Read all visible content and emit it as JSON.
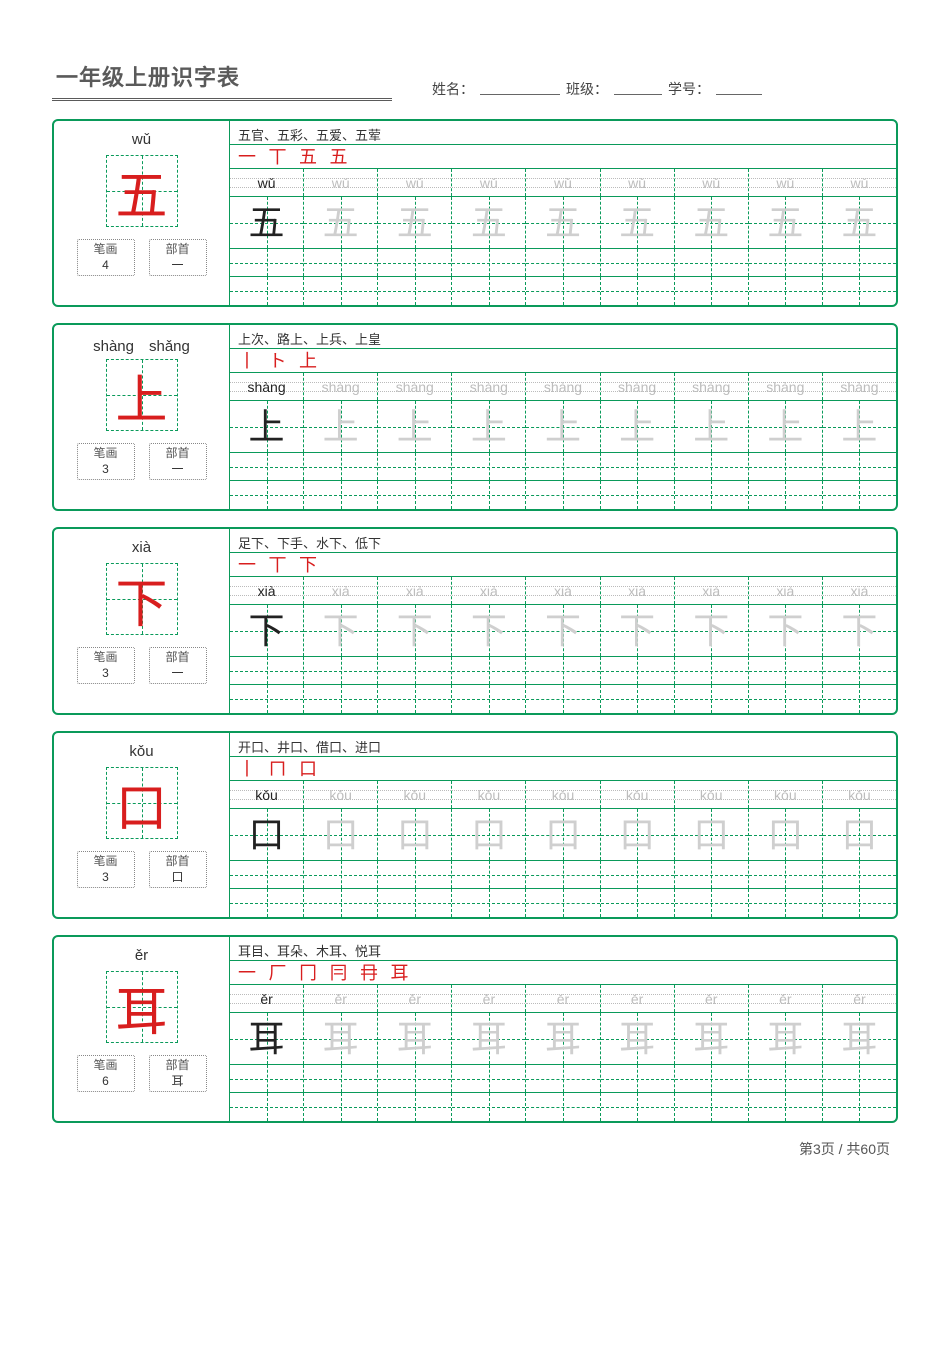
{
  "header": {
    "title": "一年级上册识字表",
    "name_label": "姓名：",
    "class_label": "班级：",
    "id_label": "学号：",
    "name_blank_width": 80,
    "class_blank_width": 48,
    "id_blank_width": 46
  },
  "labels": {
    "strokes": "笔画",
    "radical": "部首"
  },
  "grid": {
    "cols": 9
  },
  "cards": [
    {
      "pinyin": "wǔ",
      "char": "五",
      "strokes": "4",
      "radical": "一",
      "words": "五官、五彩、五爱、五荤",
      "stroke_seq": "一 丅 五 五",
      "practice_pinyin": "wǔ",
      "practice_char": "五"
    },
    {
      "pinyin": "shàng　shǎng",
      "char": "上",
      "strokes": "3",
      "radical": "一",
      "words": "上次、路上、上兵、上皇",
      "stroke_seq": "丨 ト 上",
      "practice_pinyin": "shàng",
      "practice_char": "上"
    },
    {
      "pinyin": "xià",
      "char": "下",
      "strokes": "3",
      "radical": "一",
      "words": "足下、下手、水下、低下",
      "stroke_seq": "一 丅 下",
      "practice_pinyin": "xià",
      "practice_char": "下"
    },
    {
      "pinyin": "kǒu",
      "char": "口",
      "strokes": "3",
      "radical": "口",
      "words": "开口、井口、借口、进口",
      "stroke_seq": "丨 ㄇ 口",
      "practice_pinyin": "kǒu",
      "practice_char": "口"
    },
    {
      "pinyin": "ěr",
      "char": "耳",
      "strokes": "6",
      "radical": "耳",
      "words": "耳目、耳朵、木耳、悦耳",
      "stroke_seq": "一 厂 冂 冃 冄 耳",
      "practice_pinyin": "ěr",
      "practice_char": "耳"
    }
  ],
  "footer": {
    "page": "第3页 / 共60页"
  }
}
